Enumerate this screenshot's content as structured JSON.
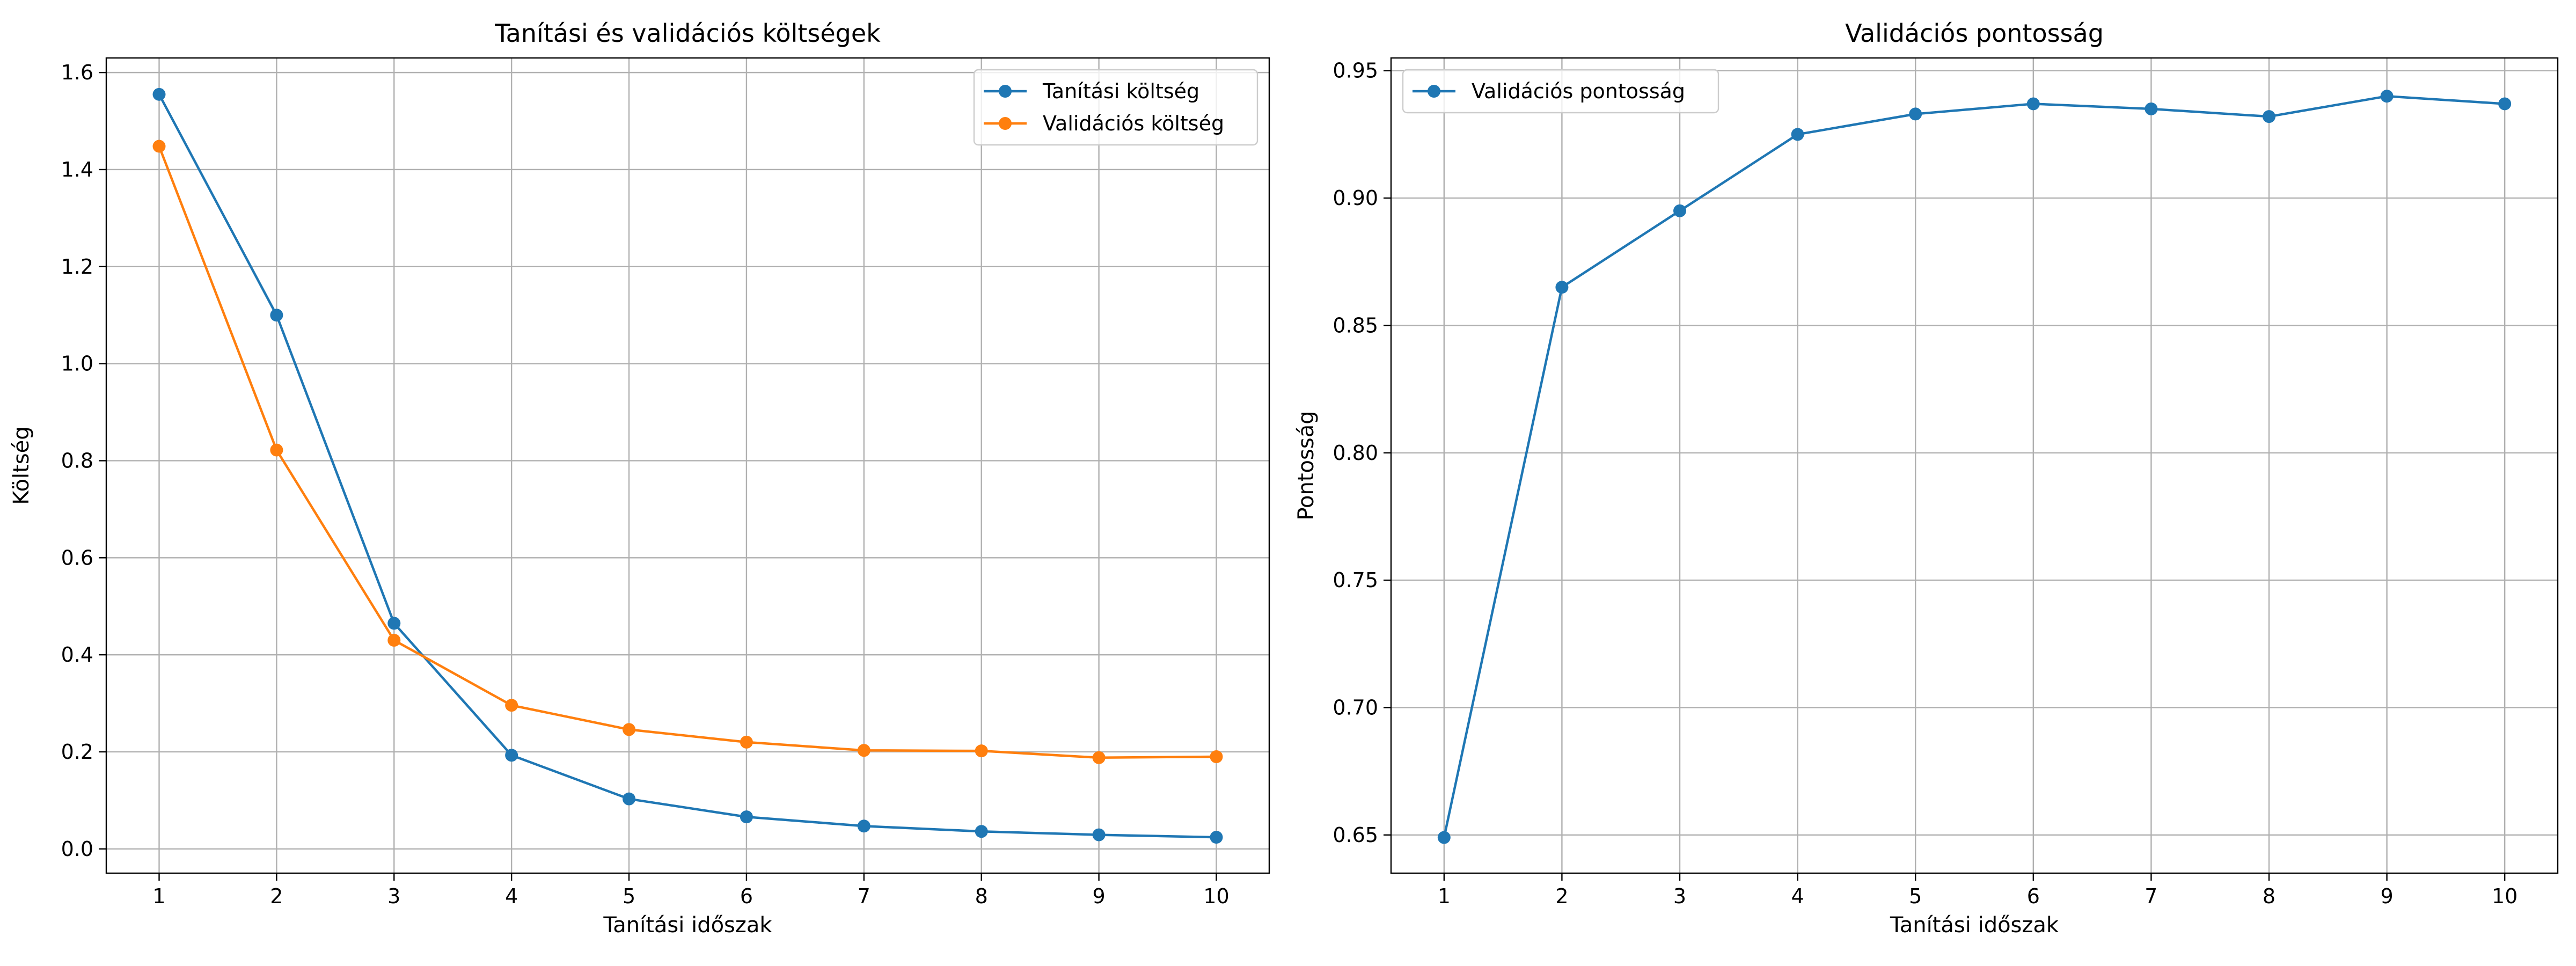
{
  "chart_data": [
    {
      "type": "line",
      "title": "Tanítási és validációs költségek",
      "xlabel": "Tanítási időszak",
      "ylabel": "Költség",
      "x": [
        1,
        2,
        3,
        4,
        5,
        6,
        7,
        8,
        9,
        10
      ],
      "xlim": [
        0.55,
        10.45
      ],
      "ylim": [
        -0.05,
        1.63
      ],
      "xticks": [
        1,
        2,
        3,
        4,
        5,
        6,
        7,
        8,
        9,
        10
      ],
      "yticks": [
        "0.0",
        "0.2",
        "0.4",
        "0.6",
        "0.8",
        "1.0",
        "1.2",
        "1.4",
        "1.6"
      ],
      "grid": true,
      "legend": "upper-right",
      "series": [
        {
          "name": "Tanítási költség",
          "color": "#1f77b4",
          "marker": "circle",
          "values": [
            1.555,
            1.1,
            0.465,
            0.193,
            0.103,
            0.066,
            0.047,
            0.036,
            0.029,
            0.024
          ]
        },
        {
          "name": "Validációs költség",
          "color": "#ff7f0e",
          "marker": "circle",
          "values": [
            1.448,
            0.822,
            0.43,
            0.296,
            0.246,
            0.22,
            0.203,
            0.202,
            0.188,
            0.19
          ]
        }
      ]
    },
    {
      "type": "line",
      "title": "Validációs pontosság",
      "xlabel": "Tanítási időszak",
      "ylabel": "Pontosság",
      "x": [
        1,
        2,
        3,
        4,
        5,
        6,
        7,
        8,
        9,
        10
      ],
      "xlim": [
        0.55,
        10.45
      ],
      "ylim": [
        0.635,
        0.955
      ],
      "xticks": [
        1,
        2,
        3,
        4,
        5,
        6,
        7,
        8,
        9,
        10
      ],
      "yticks": [
        "0.65",
        "0.70",
        "0.75",
        "0.80",
        "0.85",
        "0.90",
        "0.95"
      ],
      "grid": true,
      "legend": "upper-left",
      "series": [
        {
          "name": "Validációs pontosság",
          "color": "#1f77b4",
          "marker": "circle",
          "values": [
            0.649,
            0.865,
            0.895,
            0.925,
            0.933,
            0.937,
            0.935,
            0.932,
            0.94,
            0.937
          ]
        }
      ]
    }
  ]
}
